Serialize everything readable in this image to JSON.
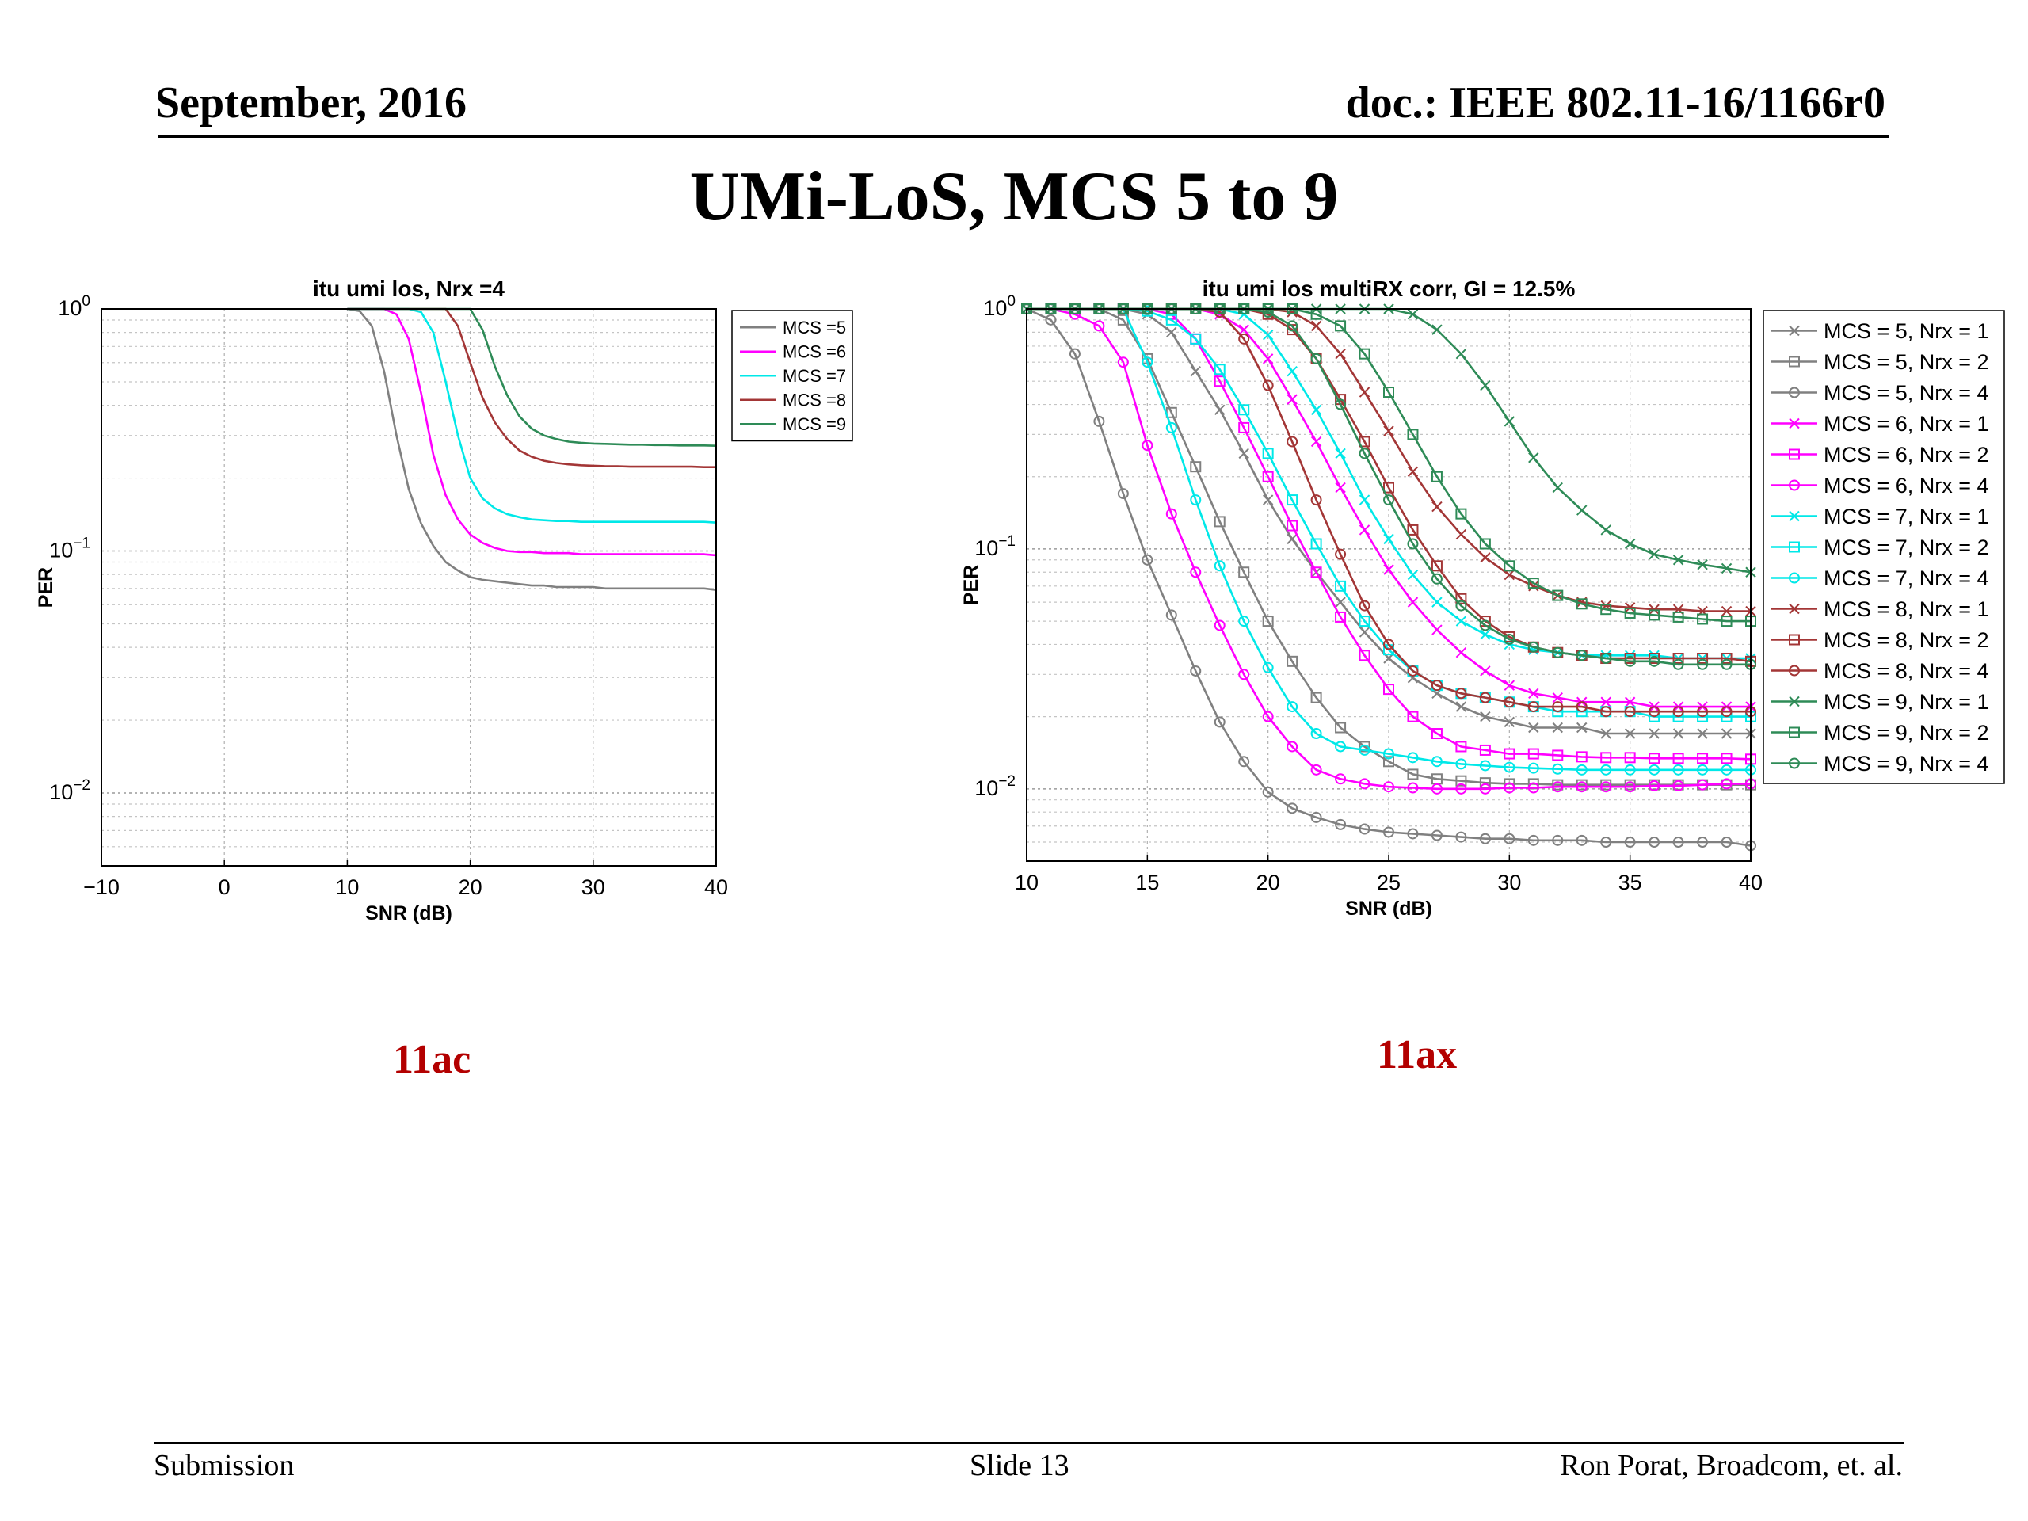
{
  "header": {
    "date": "September, 2016",
    "doc": "doc.: IEEE 802.11-16/1166r0"
  },
  "slide_title": "UMi-LoS, MCS 5 to 9",
  "captions": {
    "left": "11ac",
    "right": "11ax"
  },
  "footer": {
    "left": "Submission",
    "center": "Slide 13",
    "right": "Ron Porat, Broadcom, et. al."
  },
  "colors": {
    "mcs5": "#808080",
    "mcs6": "#ff00ff",
    "mcs7": "#00e8e8",
    "mcs8": "#a33636",
    "mcs9": "#2e8b57"
  },
  "chart_data": [
    {
      "type": "line",
      "title": "itu umi los, Nrx =4",
      "xlabel": "SNR (dB)",
      "ylabel": "PER",
      "xlim": [
        -10,
        40
      ],
      "ylim": [
        0.005,
        1
      ],
      "yscale": "log",
      "xticks": [
        "−10",
        "0",
        "10",
        "20",
        "30",
        "40"
      ],
      "grid": true,
      "legend_position": "top-right",
      "x": [
        10,
        11,
        12,
        13,
        14,
        15,
        16,
        17,
        18,
        19,
        20,
        21,
        22,
        23,
        24,
        25,
        26,
        27,
        28,
        29,
        30,
        31,
        32,
        33,
        34,
        35,
        36,
        37,
        38,
        39,
        40
      ],
      "series": [
        {
          "name": "MCS =5",
          "color": "#808080",
          "values": [
            1.0,
            0.98,
            0.85,
            0.55,
            0.3,
            0.18,
            0.13,
            0.105,
            0.09,
            0.083,
            0.078,
            0.076,
            0.075,
            0.074,
            0.073,
            0.072,
            0.072,
            0.071,
            0.071,
            0.071,
            0.071,
            0.07,
            0.07,
            0.07,
            0.07,
            0.07,
            0.07,
            0.07,
            0.07,
            0.07,
            0.069
          ]
        },
        {
          "name": "MCS =6",
          "color": "#ff00ff",
          "values": [
            1.0,
            1.0,
            1.0,
            1.0,
            0.95,
            0.75,
            0.45,
            0.25,
            0.17,
            0.135,
            0.117,
            0.108,
            0.103,
            0.1,
            0.099,
            0.099,
            0.098,
            0.098,
            0.098,
            0.097,
            0.097,
            0.097,
            0.097,
            0.097,
            0.097,
            0.097,
            0.097,
            0.097,
            0.097,
            0.097,
            0.096
          ]
        },
        {
          "name": "MCS =7",
          "color": "#00e8e8",
          "values": [
            1.0,
            1.0,
            1.0,
            1.0,
            1.0,
            1.0,
            0.97,
            0.8,
            0.5,
            0.3,
            0.2,
            0.165,
            0.15,
            0.142,
            0.138,
            0.135,
            0.134,
            0.133,
            0.133,
            0.132,
            0.132,
            0.132,
            0.132,
            0.132,
            0.132,
            0.132,
            0.132,
            0.132,
            0.132,
            0.132,
            0.131
          ]
        },
        {
          "name": "MCS =8",
          "color": "#a33636",
          "values": [
            1.0,
            1.0,
            1.0,
            1.0,
            1.0,
            1.0,
            1.0,
            1.0,
            1.0,
            0.85,
            0.6,
            0.43,
            0.34,
            0.29,
            0.26,
            0.245,
            0.236,
            0.231,
            0.228,
            0.226,
            0.225,
            0.224,
            0.224,
            0.223,
            0.223,
            0.223,
            0.223,
            0.223,
            0.223,
            0.222,
            0.222
          ]
        },
        {
          "name": "MCS =9",
          "color": "#2e8b57",
          "values": [
            1.0,
            1.0,
            1.0,
            1.0,
            1.0,
            1.0,
            1.0,
            1.0,
            1.0,
            1.0,
            1.0,
            0.82,
            0.58,
            0.44,
            0.36,
            0.32,
            0.3,
            0.29,
            0.283,
            0.28,
            0.278,
            0.277,
            0.276,
            0.275,
            0.275,
            0.274,
            0.274,
            0.273,
            0.273,
            0.273,
            0.272
          ]
        }
      ]
    },
    {
      "type": "line",
      "title": "itu umi los multiRX corr, GI = 12.5%",
      "xlabel": "SNR (dB)",
      "ylabel": "PER",
      "xlim": [
        10,
        40
      ],
      "ylim": [
        0.005,
        1
      ],
      "yscale": "log",
      "xticks": [
        "10",
        "15",
        "20",
        "25",
        "30",
        "35",
        "40"
      ],
      "grid": true,
      "legend_position": "right",
      "x": [
        10,
        11,
        12,
        13,
        14,
        15,
        16,
        17,
        18,
        19,
        20,
        21,
        22,
        23,
        24,
        25,
        26,
        27,
        28,
        29,
        30,
        31,
        32,
        33,
        34,
        35,
        36,
        37,
        38,
        39,
        40
      ],
      "series": [
        {
          "name": "MCS = 5, Nrx = 1",
          "color": "#808080",
          "marker": "x",
          "values": [
            1.0,
            1.0,
            1.0,
            1.0,
            1.0,
            0.95,
            0.8,
            0.55,
            0.38,
            0.25,
            0.16,
            0.11,
            0.08,
            0.06,
            0.045,
            0.035,
            0.029,
            0.025,
            0.022,
            0.02,
            0.019,
            0.018,
            0.018,
            0.018,
            0.017,
            0.017,
            0.017,
            0.017,
            0.017,
            0.017,
            0.017
          ]
        },
        {
          "name": "MCS = 5, Nrx = 2",
          "color": "#808080",
          "marker": "square",
          "values": [
            1.0,
            1.0,
            1.0,
            1.0,
            0.9,
            0.62,
            0.37,
            0.22,
            0.13,
            0.08,
            0.05,
            0.034,
            0.024,
            0.018,
            0.015,
            0.013,
            0.0115,
            0.011,
            0.0108,
            0.0106,
            0.0105,
            0.0105,
            0.0104,
            0.0104,
            0.0104,
            0.0104,
            0.0104,
            0.0104,
            0.0104,
            0.0104,
            0.0104
          ]
        },
        {
          "name": "MCS = 5, Nrx = 4",
          "color": "#808080",
          "marker": "circle",
          "values": [
            1.0,
            0.9,
            0.65,
            0.34,
            0.17,
            0.09,
            0.053,
            0.031,
            0.019,
            0.013,
            0.0097,
            0.0083,
            0.0076,
            0.0071,
            0.0068,
            0.0066,
            0.0065,
            0.0064,
            0.0063,
            0.0062,
            0.0062,
            0.0061,
            0.0061,
            0.0061,
            0.006,
            0.006,
            0.006,
            0.006,
            0.006,
            0.006,
            0.0058
          ]
        },
        {
          "name": "MCS = 6, Nrx = 1",
          "color": "#ff00ff",
          "marker": "x",
          "values": [
            1.0,
            1.0,
            1.0,
            1.0,
            1.0,
            1.0,
            1.0,
            1.0,
            0.95,
            0.82,
            0.62,
            0.42,
            0.28,
            0.18,
            0.12,
            0.082,
            0.06,
            0.046,
            0.037,
            0.031,
            0.027,
            0.025,
            0.024,
            0.023,
            0.023,
            0.023,
            0.022,
            0.022,
            0.022,
            0.022,
            0.022
          ]
        },
        {
          "name": "MCS = 6, Nrx = 2",
          "color": "#ff00ff",
          "marker": "square",
          "values": [
            1.0,
            1.0,
            1.0,
            1.0,
            1.0,
            1.0,
            0.95,
            0.75,
            0.5,
            0.32,
            0.2,
            0.125,
            0.08,
            0.052,
            0.036,
            0.026,
            0.02,
            0.017,
            0.015,
            0.0145,
            0.014,
            0.014,
            0.0138,
            0.0136,
            0.0135,
            0.0135,
            0.0134,
            0.0134,
            0.0134,
            0.0134,
            0.0133
          ]
        },
        {
          "name": "MCS = 6, Nrx = 4",
          "color": "#ff00ff",
          "marker": "circle",
          "values": [
            1.0,
            1.0,
            0.95,
            0.85,
            0.6,
            0.27,
            0.14,
            0.08,
            0.048,
            0.03,
            0.02,
            0.015,
            0.012,
            0.011,
            0.0105,
            0.0102,
            0.0101,
            0.01,
            0.01,
            0.01,
            0.0101,
            0.0101,
            0.0102,
            0.0102,
            0.0102,
            0.0102,
            0.0103,
            0.0103,
            0.0104,
            0.0105,
            0.0105
          ]
        },
        {
          "name": "MCS = 7, Nrx = 1",
          "color": "#00e8e8",
          "marker": "x",
          "values": [
            1.0,
            1.0,
            1.0,
            1.0,
            1.0,
            1.0,
            1.0,
            1.0,
            1.0,
            0.95,
            0.78,
            0.55,
            0.38,
            0.25,
            0.16,
            0.11,
            0.078,
            0.06,
            0.05,
            0.044,
            0.04,
            0.038,
            0.037,
            0.036,
            0.036,
            0.036,
            0.036,
            0.035,
            0.035,
            0.035,
            0.035
          ]
        },
        {
          "name": "MCS = 7, Nrx = 2",
          "color": "#00e8e8",
          "marker": "square",
          "values": [
            1.0,
            1.0,
            1.0,
            1.0,
            1.0,
            0.98,
            0.9,
            0.75,
            0.56,
            0.38,
            0.25,
            0.16,
            0.105,
            0.07,
            0.05,
            0.038,
            0.031,
            0.027,
            0.025,
            0.024,
            0.023,
            0.022,
            0.021,
            0.021,
            0.021,
            0.021,
            0.02,
            0.02,
            0.02,
            0.02,
            0.02
          ]
        },
        {
          "name": "MCS = 7, Nrx = 4",
          "color": "#00e8e8",
          "marker": "circle",
          "values": [
            1.0,
            1.0,
            1.0,
            1.0,
            1.0,
            0.6,
            0.32,
            0.16,
            0.085,
            0.05,
            0.032,
            0.022,
            0.017,
            0.015,
            0.0145,
            0.014,
            0.0135,
            0.013,
            0.0127,
            0.0125,
            0.0123,
            0.0122,
            0.0121,
            0.012,
            0.012,
            0.012,
            0.012,
            0.012,
            0.012,
            0.012,
            0.012
          ]
        },
        {
          "name": "MCS = 8, Nrx = 1",
          "color": "#a33636",
          "marker": "x",
          "values": [
            1.0,
            1.0,
            1.0,
            1.0,
            1.0,
            1.0,
            1.0,
            1.0,
            1.0,
            1.0,
            1.0,
            0.97,
            0.85,
            0.65,
            0.45,
            0.31,
            0.21,
            0.15,
            0.115,
            0.092,
            0.078,
            0.07,
            0.064,
            0.06,
            0.058,
            0.057,
            0.056,
            0.056,
            0.055,
            0.055,
            0.055
          ]
        },
        {
          "name": "MCS = 8, Nrx = 2",
          "color": "#a33636",
          "marker": "square",
          "values": [
            1.0,
            1.0,
            1.0,
            1.0,
            1.0,
            1.0,
            1.0,
            1.0,
            1.0,
            1.0,
            0.95,
            0.82,
            0.62,
            0.42,
            0.28,
            0.18,
            0.12,
            0.085,
            0.062,
            0.05,
            0.043,
            0.039,
            0.037,
            0.036,
            0.035,
            0.035,
            0.035,
            0.035,
            0.035,
            0.035,
            0.034
          ]
        },
        {
          "name": "MCS = 8, Nrx = 4",
          "color": "#a33636",
          "marker": "circle",
          "values": [
            1.0,
            1.0,
            1.0,
            1.0,
            1.0,
            1.0,
            1.0,
            1.0,
            0.97,
            0.75,
            0.48,
            0.28,
            0.16,
            0.095,
            0.058,
            0.04,
            0.031,
            0.027,
            0.025,
            0.024,
            0.023,
            0.022,
            0.022,
            0.022,
            0.021,
            0.021,
            0.021,
            0.021,
            0.021,
            0.021,
            0.021
          ]
        },
        {
          "name": "MCS = 9, Nrx = 1",
          "color": "#2e8b57",
          "marker": "x",
          "values": [
            1.0,
            1.0,
            1.0,
            1.0,
            1.0,
            1.0,
            1.0,
            1.0,
            1.0,
            1.0,
            1.0,
            1.0,
            1.0,
            1.0,
            1.0,
            1.0,
            0.95,
            0.82,
            0.65,
            0.48,
            0.34,
            0.24,
            0.18,
            0.145,
            0.12,
            0.105,
            0.095,
            0.09,
            0.086,
            0.083,
            0.08
          ]
        },
        {
          "name": "MCS = 9, Nrx = 2",
          "color": "#2e8b57",
          "marker": "square",
          "values": [
            1.0,
            1.0,
            1.0,
            1.0,
            1.0,
            1.0,
            1.0,
            1.0,
            1.0,
            1.0,
            1.0,
            1.0,
            0.95,
            0.85,
            0.65,
            0.45,
            0.3,
            0.2,
            0.14,
            0.105,
            0.085,
            0.072,
            0.064,
            0.059,
            0.056,
            0.054,
            0.053,
            0.052,
            0.051,
            0.05,
            0.05
          ]
        },
        {
          "name": "MCS = 9, Nrx = 4",
          "color": "#2e8b57",
          "marker": "circle",
          "values": [
            1.0,
            1.0,
            1.0,
            1.0,
            1.0,
            1.0,
            1.0,
            1.0,
            1.0,
            1.0,
            0.97,
            0.85,
            0.62,
            0.4,
            0.25,
            0.16,
            0.105,
            0.075,
            0.058,
            0.048,
            0.042,
            0.039,
            0.037,
            0.036,
            0.035,
            0.034,
            0.034,
            0.033,
            0.033,
            0.033,
            0.033
          ]
        }
      ]
    }
  ]
}
